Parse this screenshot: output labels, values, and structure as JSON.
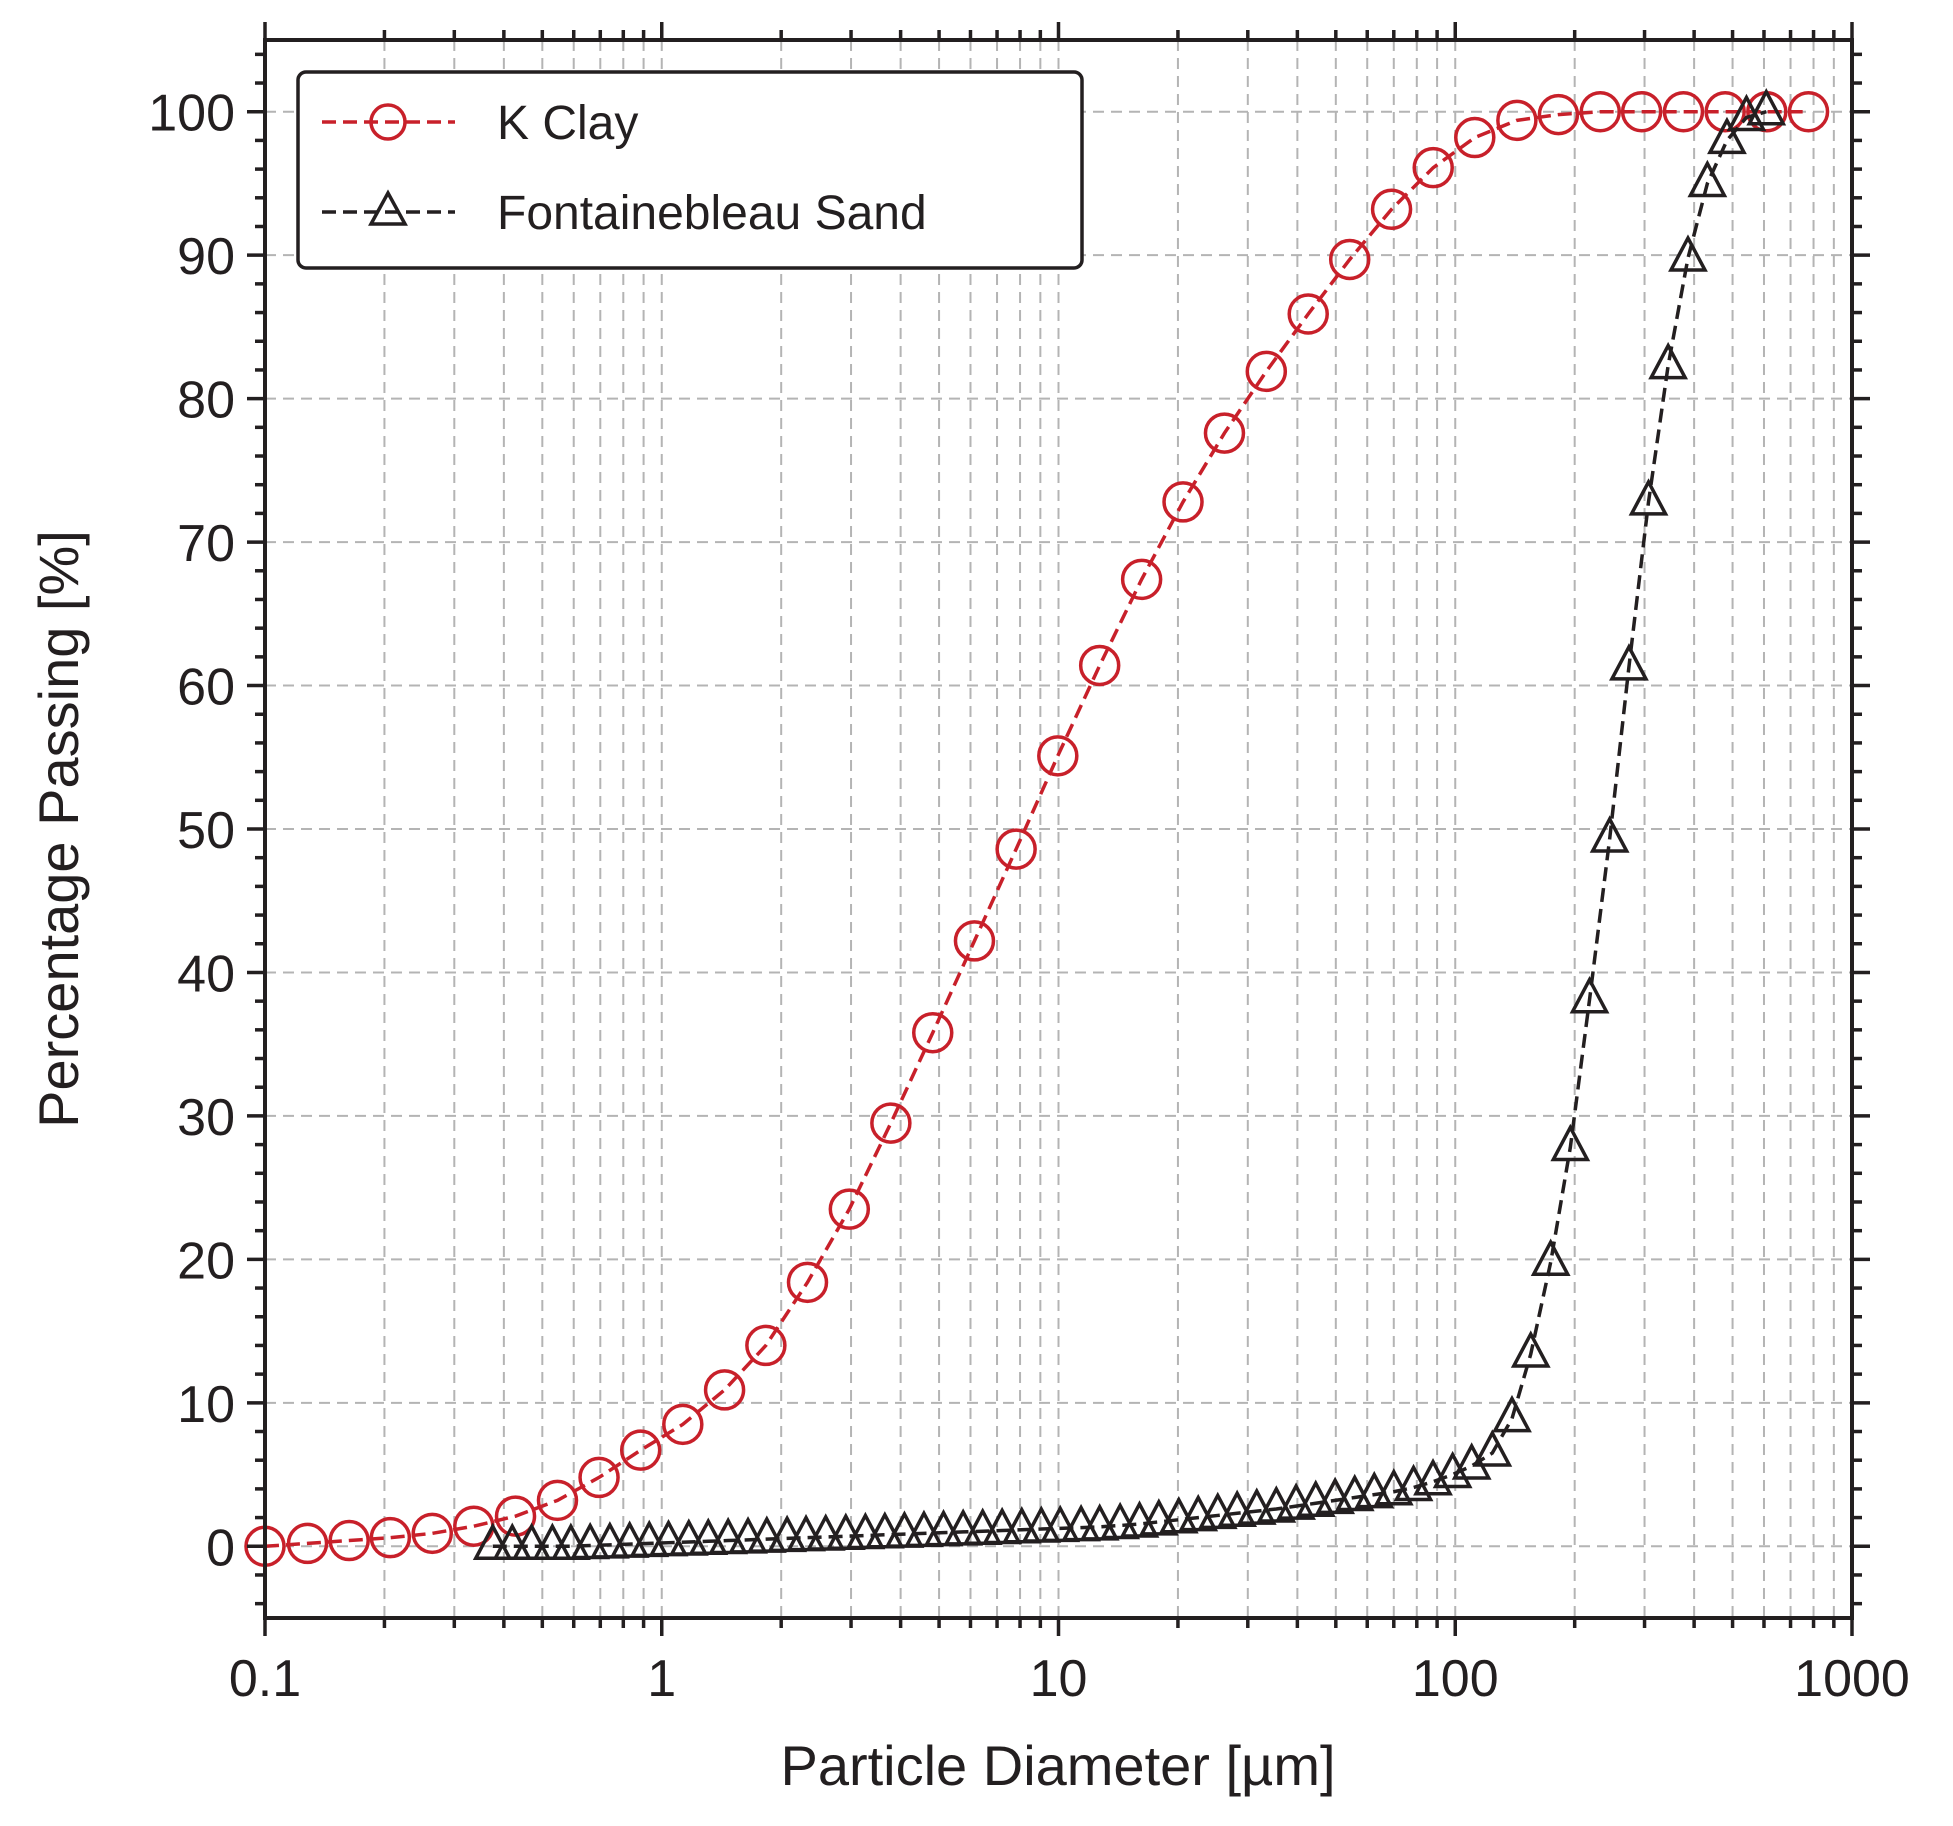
{
  "chart_data": {
    "type": "line",
    "title": "",
    "xlabel": "Particle Diameter [µm]",
    "ylabel": "Percentage Passing [%]",
    "xscale": "log",
    "xlim": [
      0.1,
      1000
    ],
    "ylim": [
      -5,
      105
    ],
    "x_tick_labels": [
      "0.1",
      "1",
      "10",
      "100",
      "1000"
    ],
    "y_tick_labels": [
      "0",
      "10",
      "20",
      "30",
      "40",
      "50",
      "60",
      "70",
      "80",
      "90",
      "100"
    ],
    "grid": true,
    "legend_position": "top-left",
    "series": [
      {
        "name": "K Clay",
        "color": "#c8202a",
        "marker": "circle",
        "linestyle": "dashed",
        "x": [
          0.1,
          0.128,
          0.163,
          0.207,
          0.264,
          0.336,
          0.428,
          0.546,
          0.695,
          0.885,
          1.13,
          1.44,
          1.83,
          2.33,
          2.97,
          3.78,
          4.82,
          6.14,
          7.82,
          9.96,
          12.7,
          16.2,
          20.6,
          26.2,
          33.4,
          42.6,
          54.2,
          69.1,
          88.0,
          112,
          143,
          182,
          232,
          295,
          376,
          479,
          610,
          777
        ],
        "y": [
          0.0,
          0.2,
          0.4,
          0.6,
          0.9,
          1.4,
          2.1,
          3.2,
          4.8,
          6.7,
          8.5,
          10.9,
          14.0,
          18.4,
          23.5,
          29.5,
          35.8,
          42.2,
          48.6,
          55.1,
          61.4,
          67.4,
          72.8,
          77.6,
          81.9,
          85.9,
          89.7,
          93.2,
          96.1,
          98.2,
          99.4,
          99.8,
          100.0,
          100.0,
          100.0,
          100.0,
          100.0,
          100.0
        ]
      },
      {
        "name": "Fontainebleau Sand",
        "color": "#231f20",
        "marker": "triangle",
        "linestyle": "dashed",
        "x": [
          0.375,
          0.42,
          0.47,
          0.53,
          0.59,
          0.66,
          0.74,
          0.83,
          0.93,
          1.04,
          1.17,
          1.31,
          1.47,
          1.65,
          1.84,
          2.07,
          2.31,
          2.59,
          2.91,
          3.26,
          3.65,
          4.09,
          4.58,
          5.13,
          5.75,
          6.44,
          7.21,
          8.08,
          9.05,
          10.1,
          11.4,
          12.7,
          14.3,
          16.0,
          17.9,
          20.1,
          22.5,
          25.2,
          28.2,
          31.6,
          35.4,
          39.7,
          44.5,
          49.8,
          55.8,
          62.5,
          70.0,
          78.5,
          87.9,
          98.5,
          110,
          124,
          139,
          155,
          174,
          195,
          218,
          245,
          274,
          307,
          344,
          386,
          432,
          484,
          542,
          608
        ],
        "y": [
          0.0,
          0.0,
          0.0,
          0.0,
          0.0,
          0.05,
          0.1,
          0.15,
          0.2,
          0.25,
          0.3,
          0.35,
          0.4,
          0.45,
          0.5,
          0.55,
          0.6,
          0.65,
          0.7,
          0.75,
          0.8,
          0.85,
          0.9,
          0.95,
          1.0,
          1.05,
          1.1,
          1.15,
          1.2,
          1.25,
          1.3,
          1.35,
          1.45,
          1.55,
          1.7,
          1.85,
          2.0,
          2.15,
          2.3,
          2.45,
          2.6,
          2.8,
          3.0,
          3.2,
          3.4,
          3.6,
          3.8,
          4.1,
          4.5,
          5.0,
          5.6,
          6.5,
          8.9,
          13.4,
          19.8,
          27.8,
          38.1,
          49.3,
          61.3,
          72.8,
          82.3,
          89.8,
          95.0,
          98.0,
          99.6,
          100.0
        ]
      }
    ]
  }
}
